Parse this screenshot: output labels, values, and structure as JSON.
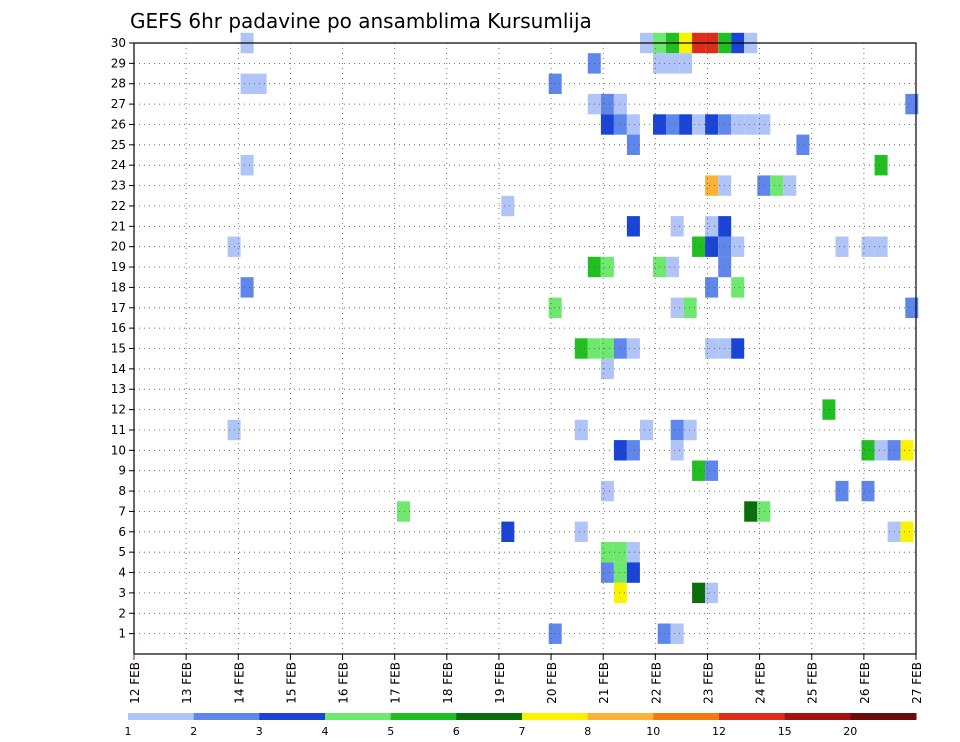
{
  "chart_data": {
    "type": "heatmap",
    "title": "GEFS 6hr padavine po ansamblima Kursumlija",
    "x_tick_labels": [
      "12 FEB",
      "13 FEB",
      "14 FEB",
      "15 FEB",
      "16 FEB",
      "17 FEB",
      "18 FEB",
      "19 FEB",
      "20 FEB",
      "21 FEB",
      "22 FEB",
      "23 FEB",
      "24 FEB",
      "25 FEB",
      "26 FEB",
      "27 FEB"
    ],
    "y_tick_labels": [
      "1",
      "2",
      "3",
      "4",
      "5",
      "6",
      "7",
      "8",
      "9",
      "10",
      "11",
      "12",
      "13",
      "14",
      "15",
      "16",
      "17",
      "18",
      "19",
      "20",
      "21",
      "22",
      "23",
      "24",
      "25",
      "26",
      "27",
      "28",
      "29",
      "30"
    ],
    "xlim_days": [
      12,
      27
    ],
    "ylim": [
      0,
      30
    ],
    "grid": true,
    "colorbar": {
      "colors": [
        "#b0c4f8",
        "#5f87eb",
        "#1a44d6",
        "#6ee86e",
        "#22bf22",
        "#0b6e0b",
        "#fbf200",
        "#fbb238",
        "#f27a10",
        "#dd2c1a",
        "#a51010",
        "#6e0b0b"
      ],
      "labels": [
        "1",
        "2",
        "3",
        "4",
        "5",
        "6",
        "7",
        "8",
        "10",
        "12",
        "15",
        "20"
      ]
    },
    "cells": [
      {
        "t": 14.17,
        "m": 30,
        "c": 0
      },
      {
        "t": 21.83,
        "m": 30,
        "c": 0
      },
      {
        "t": 22.08,
        "m": 30,
        "c": 3
      },
      {
        "t": 22.33,
        "m": 30,
        "c": 4
      },
      {
        "t": 22.58,
        "m": 30,
        "c": 6
      },
      {
        "t": 22.83,
        "m": 30,
        "c": 9
      },
      {
        "t": 23.08,
        "m": 30,
        "c": 9
      },
      {
        "t": 23.33,
        "m": 30,
        "c": 4
      },
      {
        "t": 23.58,
        "m": 30,
        "c": 2
      },
      {
        "t": 23.83,
        "m": 30,
        "c": 0
      },
      {
        "t": 20.83,
        "m": 29,
        "c": 1
      },
      {
        "t": 22.08,
        "m": 29,
        "c": 0
      },
      {
        "t": 22.33,
        "m": 29,
        "c": 0
      },
      {
        "t": 22.58,
        "m": 29,
        "c": 0
      },
      {
        "t": 14.17,
        "m": 28,
        "c": 0
      },
      {
        "t": 14.42,
        "m": 28,
        "c": 0
      },
      {
        "t": 20.08,
        "m": 28,
        "c": 1
      },
      {
        "t": 20.83,
        "m": 27,
        "c": 0
      },
      {
        "t": 21.08,
        "m": 27,
        "c": 1
      },
      {
        "t": 21.33,
        "m": 27,
        "c": 0
      },
      {
        "t": 26.92,
        "m": 27,
        "c": 1
      },
      {
        "t": 21.08,
        "m": 26,
        "c": 2
      },
      {
        "t": 21.33,
        "m": 26,
        "c": 1
      },
      {
        "t": 21.58,
        "m": 26,
        "c": 0
      },
      {
        "t": 22.08,
        "m": 26,
        "c": 2
      },
      {
        "t": 22.33,
        "m": 26,
        "c": 1
      },
      {
        "t": 22.58,
        "m": 26,
        "c": 2
      },
      {
        "t": 22.83,
        "m": 26,
        "c": 0
      },
      {
        "t": 23.08,
        "m": 26,
        "c": 2
      },
      {
        "t": 23.33,
        "m": 26,
        "c": 1
      },
      {
        "t": 23.58,
        "m": 26,
        "c": 0
      },
      {
        "t": 23.83,
        "m": 26,
        "c": 0
      },
      {
        "t": 24.08,
        "m": 26,
        "c": 0
      },
      {
        "t": 21.58,
        "m": 25,
        "c": 1
      },
      {
        "t": 24.83,
        "m": 25,
        "c": 1
      },
      {
        "t": 14.17,
        "m": 24,
        "c": 0
      },
      {
        "t": 26.33,
        "m": 24,
        "c": 4
      },
      {
        "t": 23.08,
        "m": 23,
        "c": 7
      },
      {
        "t": 23.33,
        "m": 23,
        "c": 0
      },
      {
        "t": 24.08,
        "m": 23,
        "c": 1
      },
      {
        "t": 24.33,
        "m": 23,
        "c": 3
      },
      {
        "t": 24.58,
        "m": 23,
        "c": 0
      },
      {
        "t": 19.17,
        "m": 22,
        "c": 0
      },
      {
        "t": 21.58,
        "m": 21,
        "c": 2
      },
      {
        "t": 22.42,
        "m": 21,
        "c": 0
      },
      {
        "t": 23.08,
        "m": 21,
        "c": 0
      },
      {
        "t": 23.33,
        "m": 21,
        "c": 2
      },
      {
        "t": 13.92,
        "m": 20,
        "c": 0
      },
      {
        "t": 22.83,
        "m": 20,
        "c": 4
      },
      {
        "t": 23.08,
        "m": 20,
        "c": 2
      },
      {
        "t": 23.33,
        "m": 20,
        "c": 1
      },
      {
        "t": 23.58,
        "m": 20,
        "c": 0
      },
      {
        "t": 25.58,
        "m": 20,
        "c": 0
      },
      {
        "t": 26.08,
        "m": 20,
        "c": 0
      },
      {
        "t": 26.33,
        "m": 20,
        "c": 0
      },
      {
        "t": 20.83,
        "m": 19,
        "c": 4
      },
      {
        "t": 21.08,
        "m": 19,
        "c": 3
      },
      {
        "t": 22.08,
        "m": 19,
        "c": 3
      },
      {
        "t": 22.33,
        "m": 19,
        "c": 0
      },
      {
        "t": 23.33,
        "m": 19,
        "c": 1
      },
      {
        "t": 14.17,
        "m": 18,
        "c": 1
      },
      {
        "t": 23.08,
        "m": 18,
        "c": 1
      },
      {
        "t": 23.58,
        "m": 18,
        "c": 3
      },
      {
        "t": 20.08,
        "m": 17,
        "c": 3
      },
      {
        "t": 22.42,
        "m": 17,
        "c": 0
      },
      {
        "t": 22.67,
        "m": 17,
        "c": 3
      },
      {
        "t": 26.92,
        "m": 17,
        "c": 1
      },
      {
        "t": 20.58,
        "m": 15,
        "c": 4
      },
      {
        "t": 20.83,
        "m": 15,
        "c": 3
      },
      {
        "t": 21.08,
        "m": 15,
        "c": 3
      },
      {
        "t": 21.33,
        "m": 15,
        "c": 1
      },
      {
        "t": 21.58,
        "m": 15,
        "c": 0
      },
      {
        "t": 23.08,
        "m": 15,
        "c": 0
      },
      {
        "t": 23.33,
        "m": 15,
        "c": 0
      },
      {
        "t": 23.58,
        "m": 15,
        "c": 2
      },
      {
        "t": 21.08,
        "m": 14,
        "c": 0
      },
      {
        "t": 25.33,
        "m": 12,
        "c": 4
      },
      {
        "t": 13.92,
        "m": 11,
        "c": 0
      },
      {
        "t": 20.58,
        "m": 11,
        "c": 0
      },
      {
        "t": 21.83,
        "m": 11,
        "c": 0
      },
      {
        "t": 22.42,
        "m": 11,
        "c": 1
      },
      {
        "t": 22.67,
        "m": 11,
        "c": 0
      },
      {
        "t": 21.33,
        "m": 10,
        "c": 2
      },
      {
        "t": 21.58,
        "m": 10,
        "c": 1
      },
      {
        "t": 22.42,
        "m": 10,
        "c": 0
      },
      {
        "t": 26.08,
        "m": 10,
        "c": 4
      },
      {
        "t": 26.33,
        "m": 10,
        "c": 0
      },
      {
        "t": 26.58,
        "m": 10,
        "c": 1
      },
      {
        "t": 26.83,
        "m": 10,
        "c": 6
      },
      {
        "t": 22.83,
        "m": 9,
        "c": 4
      },
      {
        "t": 23.08,
        "m": 9,
        "c": 1
      },
      {
        "t": 21.08,
        "m": 8,
        "c": 0
      },
      {
        "t": 25.58,
        "m": 8,
        "c": 1
      },
      {
        "t": 26.08,
        "m": 8,
        "c": 1
      },
      {
        "t": 17.17,
        "m": 7,
        "c": 3
      },
      {
        "t": 23.83,
        "m": 7,
        "c": 5
      },
      {
        "t": 24.08,
        "m": 7,
        "c": 3
      },
      {
        "t": 19.17,
        "m": 6,
        "c": 2
      },
      {
        "t": 20.58,
        "m": 6,
        "c": 0
      },
      {
        "t": 26.58,
        "m": 6,
        "c": 0
      },
      {
        "t": 26.83,
        "m": 6,
        "c": 6
      },
      {
        "t": 21.08,
        "m": 5,
        "c": 3
      },
      {
        "t": 21.33,
        "m": 5,
        "c": 3
      },
      {
        "t": 21.58,
        "m": 5,
        "c": 0
      },
      {
        "t": 21.08,
        "m": 4,
        "c": 1
      },
      {
        "t": 21.33,
        "m": 4,
        "c": 3
      },
      {
        "t": 21.58,
        "m": 4,
        "c": 2
      },
      {
        "t": 21.33,
        "m": 3,
        "c": 6
      },
      {
        "t": 22.83,
        "m": 3,
        "c": 5
      },
      {
        "t": 23.08,
        "m": 3,
        "c": 0
      },
      {
        "t": 20.08,
        "m": 1,
        "c": 1
      },
      {
        "t": 22.17,
        "m": 1,
        "c": 1
      },
      {
        "t": 22.42,
        "m": 1,
        "c": 0
      }
    ]
  }
}
